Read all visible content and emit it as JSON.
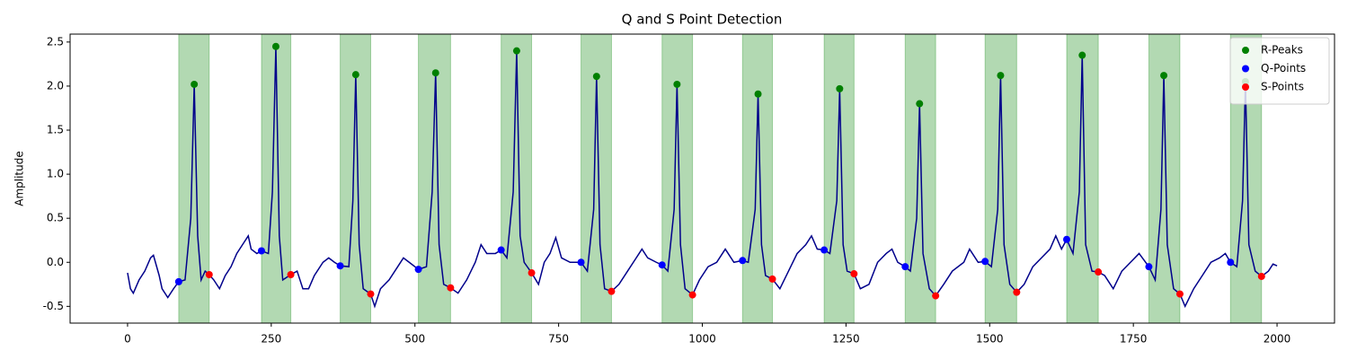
{
  "chart_data": {
    "type": "line",
    "title": "Q and S Point Detection",
    "ylabel": "Amplitude",
    "xlim": [
      -100,
      2100
    ],
    "ylim": [
      -0.69,
      2.59
    ],
    "xticks": [
      0,
      250,
      500,
      750,
      1000,
      1250,
      1500,
      1750,
      2000
    ],
    "yticks": [
      -0.5,
      {
        "value": 0,
        "label": "0.0"
      },
      0.5,
      {
        "value": 1,
        "label": "1.0"
      },
      1.5,
      {
        "value": 2,
        "label": "2.0"
      },
      2.5
    ],
    "legend": "upper right",
    "span_color": "green",
    "series": [
      {
        "type": "line",
        "color": "#00008b",
        "x": [
          0,
          5,
          10,
          20,
          30,
          40,
          45,
          55,
          60,
          70,
          80,
          89,
          100,
          110,
          116,
          122,
          128,
          135,
          142,
          150,
          160,
          170,
          180,
          190,
          200,
          210,
          215,
          225,
          233,
          245,
          252,
          258,
          264,
          270,
          284,
          295,
          305,
          315,
          325,
          340,
          350,
          360,
          370,
          385,
          392,
          397,
          403,
          410,
          423,
          430,
          440,
          455,
          470,
          480,
          490,
          506,
          520,
          530,
          536,
          542,
          550,
          562,
          575,
          590,
          605,
          615,
          625,
          640,
          650,
          660,
          671,
          677,
          683,
          690,
          703,
          715,
          725,
          735,
          745,
          755,
          770,
          789,
          800,
          811,
          816,
          822,
          830,
          842,
          855,
          870,
          885,
          895,
          905,
          920,
          930,
          940,
          951,
          956,
          962,
          970,
          983,
          995,
          1010,
          1025,
          1040,
          1055,
          1070,
          1080,
          1092,
          1097,
          1103,
          1110,
          1122,
          1135,
          1150,
          1165,
          1180,
          1190,
          1200,
          1212,
          1222,
          1234,
          1239,
          1245,
          1252,
          1264,
          1275,
          1290,
          1305,
          1320,
          1330,
          1340,
          1353,
          1362,
          1373,
          1378,
          1384,
          1395,
          1406,
          1420,
          1435,
          1455,
          1465,
          1480,
          1492,
          1503,
          1514,
          1519,
          1525,
          1535,
          1547,
          1560,
          1575,
          1590,
          1605,
          1615,
          1625,
          1634,
          1645,
          1656,
          1661,
          1667,
          1678,
          1689,
          1700,
          1715,
          1730,
          1745,
          1760,
          1777,
          1788,
          1798,
          1803,
          1809,
          1820,
          1831,
          1840,
          1855,
          1870,
          1885,
          1900,
          1910,
          1919,
          1930,
          1940,
          1945,
          1951,
          1962,
          1973,
          1985,
          1993,
          2000
        ],
        "values": [
          -0.12,
          -0.3,
          -0.35,
          -0.2,
          -0.1,
          0.05,
          0.08,
          -0.15,
          -0.3,
          -0.4,
          -0.3,
          -0.22,
          -0.2,
          0.5,
          2.02,
          0.3,
          -0.2,
          -0.1,
          -0.14,
          -0.2,
          -0.3,
          -0.15,
          -0.05,
          0.1,
          0.2,
          0.3,
          0.15,
          0.1,
          0.13,
          0.1,
          0.8,
          2.45,
          0.3,
          -0.2,
          -0.14,
          -0.1,
          -0.3,
          -0.3,
          -0.15,
          0.0,
          0.05,
          0.0,
          -0.04,
          -0.05,
          0.7,
          2.13,
          0.2,
          -0.3,
          -0.36,
          -0.5,
          -0.3,
          -0.2,
          -0.05,
          0.05,
          0.0,
          -0.08,
          -0.05,
          0.8,
          2.15,
          0.2,
          -0.25,
          -0.29,
          -0.35,
          -0.2,
          0.0,
          0.2,
          0.1,
          0.1,
          0.14,
          0.05,
          0.8,
          2.4,
          0.3,
          0.0,
          -0.12,
          -0.25,
          0.0,
          0.1,
          0.28,
          0.05,
          0.0,
          0.0,
          -0.1,
          0.6,
          2.11,
          0.2,
          -0.3,
          -0.33,
          -0.25,
          -0.1,
          0.05,
          0.15,
          0.05,
          0.0,
          -0.03,
          -0.1,
          0.6,
          2.02,
          0.2,
          -0.3,
          -0.37,
          -0.2,
          -0.05,
          0.0,
          0.15,
          0.0,
          0.02,
          0.0,
          0.6,
          1.91,
          0.2,
          -0.15,
          -0.19,
          -0.3,
          -0.1,
          0.1,
          0.2,
          0.3,
          0.15,
          0.14,
          0.1,
          0.7,
          1.97,
          0.2,
          -0.1,
          -0.13,
          -0.3,
          -0.25,
          0.0,
          0.1,
          0.15,
          0.0,
          -0.05,
          -0.1,
          0.5,
          1.8,
          0.1,
          -0.3,
          -0.38,
          -0.25,
          -0.1,
          0.0,
          0.15,
          0.0,
          0.01,
          -0.05,
          0.6,
          2.12,
          0.2,
          -0.25,
          -0.34,
          -0.25,
          -0.05,
          0.05,
          0.15,
          0.3,
          0.15,
          0.26,
          0.1,
          0.8,
          2.35,
          0.2,
          -0.1,
          -0.11,
          -0.15,
          -0.3,
          -0.1,
          0.0,
          0.1,
          -0.05,
          -0.2,
          0.6,
          2.12,
          0.2,
          -0.3,
          -0.36,
          -0.5,
          -0.3,
          -0.15,
          0.0,
          0.05,
          0.1,
          0.0,
          -0.05,
          0.7,
          2.05,
          0.2,
          -0.1,
          -0.16,
          -0.1,
          -0.02,
          -0.04
        ]
      },
      {
        "type": "scatter",
        "name": "R-Peaks",
        "color": "green",
        "x": [
          116,
          258,
          397,
          536,
          677,
          816,
          956,
          1097,
          1239,
          1378,
          1519,
          1661,
          1803,
          1945
        ],
        "values": [
          2.02,
          2.45,
          2.13,
          2.15,
          2.4,
          2.11,
          2.02,
          1.91,
          1.97,
          1.8,
          2.12,
          2.35,
          2.12,
          2.05
        ]
      },
      {
        "type": "scatter",
        "name": "Q-Points",
        "color": "blue",
        "x": [
          89,
          233,
          370,
          506,
          650,
          789,
          930,
          1070,
          1212,
          1353,
          1492,
          1634,
          1777,
          1919
        ],
        "values": [
          -0.22,
          0.13,
          -0.04,
          -0.08,
          0.14,
          0.0,
          -0.03,
          0.02,
          0.14,
          -0.05,
          0.01,
          0.26,
          -0.05,
          0.0
        ]
      },
      {
        "type": "scatter",
        "name": "S-Points",
        "color": "red",
        "x": [
          142,
          284,
          423,
          562,
          703,
          842,
          983,
          1122,
          1264,
          1406,
          1547,
          1689,
          1831,
          1973
        ],
        "values": [
          -0.14,
          -0.14,
          -0.36,
          -0.29,
          -0.12,
          -0.33,
          -0.37,
          -0.19,
          -0.13,
          -0.38,
          -0.34,
          -0.11,
          -0.36,
          -0.16
        ]
      }
    ]
  }
}
